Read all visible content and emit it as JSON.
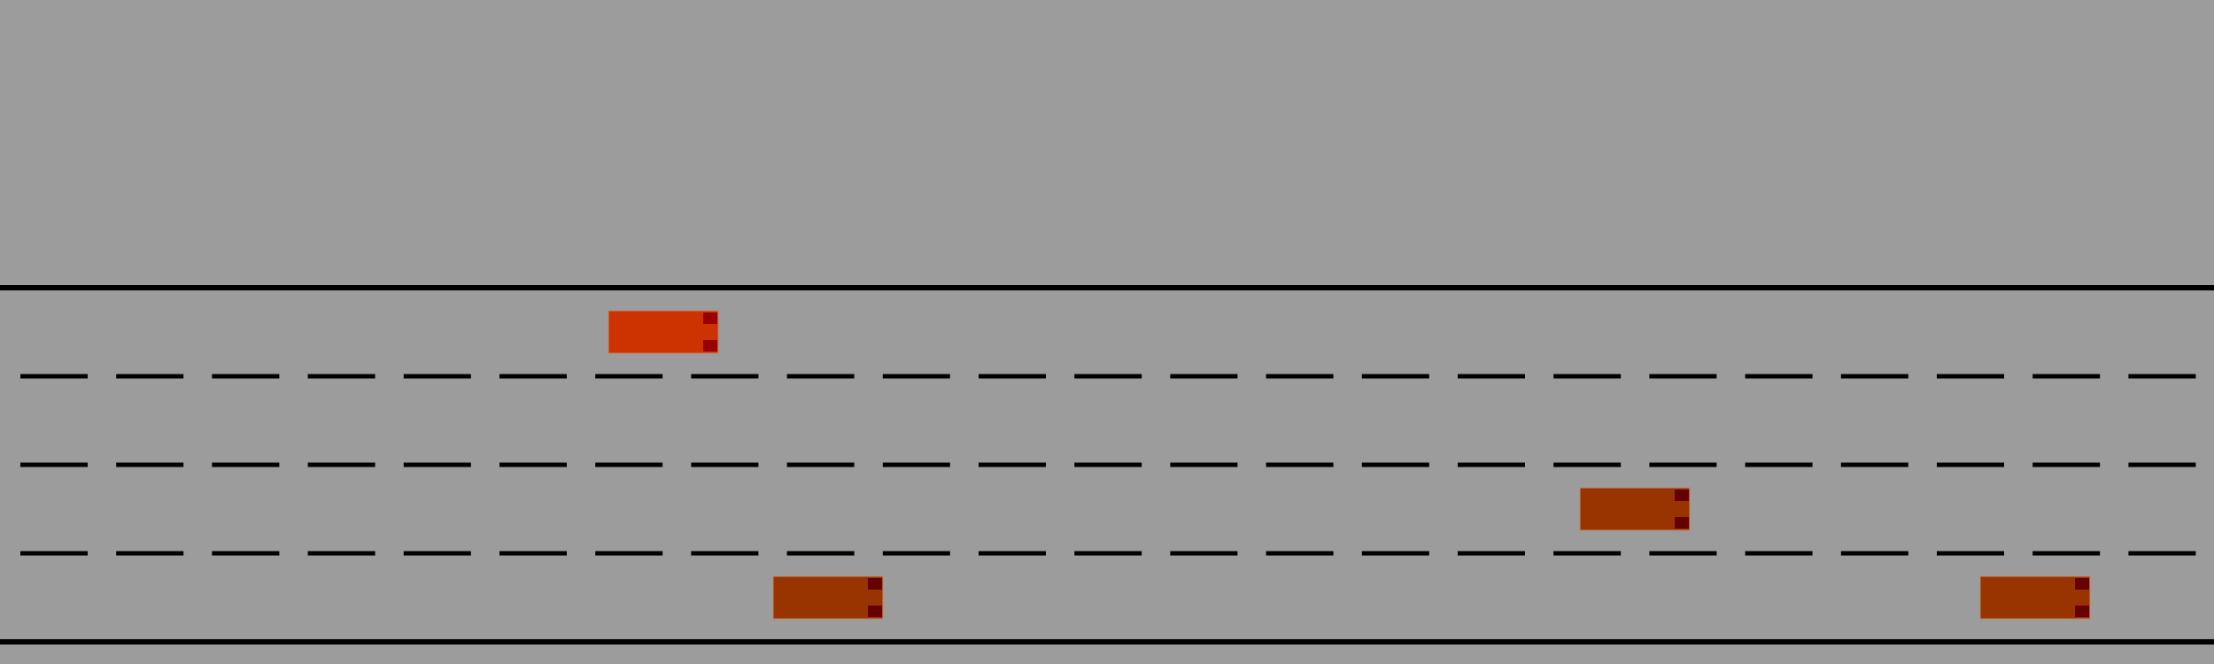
{
  "scene": {
    "background_color": "#9c9c9c",
    "road_line_color": "#000000",
    "lane_count": 4
  },
  "vehicles": [
    {
      "id": "ego",
      "lane": 0,
      "body_color": "#cc3300",
      "light_color": "#990000"
    },
    {
      "id": "other-1",
      "lane": 2,
      "body_color": "#993300",
      "light_color": "#660000"
    },
    {
      "id": "other-2",
      "lane": 3,
      "body_color": "#993300",
      "light_color": "#660000"
    },
    {
      "id": "other-3",
      "lane": 3,
      "body_color": "#993300",
      "light_color": "#660000"
    }
  ]
}
